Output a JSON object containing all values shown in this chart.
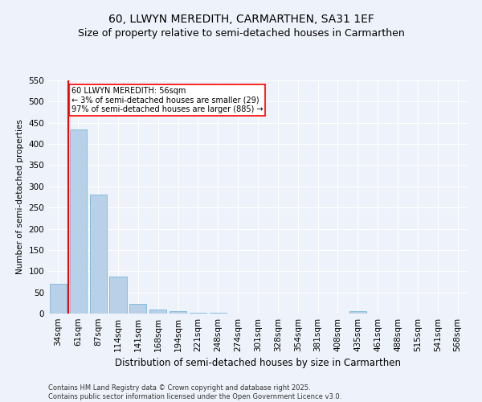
{
  "title": "60, LLWYN MEREDITH, CARMARTHEN, SA31 1EF",
  "subtitle": "Size of property relative to semi-detached houses in Carmarthen",
  "xlabel": "Distribution of semi-detached houses by size in Carmarthen",
  "ylabel": "Number of semi-detached properties",
  "categories": [
    "34sqm",
    "61sqm",
    "87sqm",
    "114sqm",
    "141sqm",
    "168sqm",
    "194sqm",
    "221sqm",
    "248sqm",
    "274sqm",
    "301sqm",
    "328sqm",
    "354sqm",
    "381sqm",
    "408sqm",
    "435sqm",
    "461sqm",
    "488sqm",
    "515sqm",
    "541sqm",
    "568sqm"
  ],
  "values": [
    70,
    435,
    280,
    88,
    23,
    10,
    5,
    2,
    1,
    0,
    0,
    0,
    0,
    0,
    0,
    5,
    0,
    0,
    0,
    0,
    0
  ],
  "bar_color": "#b8d0e8",
  "bar_edgecolor": "#6aaed6",
  "vline_color": "red",
  "vline_x_index": 1,
  "annotation_title": "60 LLWYN MEREDITH: 56sqm",
  "annotation_line1": "← 3% of semi-detached houses are smaller (29)",
  "annotation_line2": "97% of semi-detached houses are larger (885) →",
  "annotation_box_facecolor": "white",
  "annotation_box_edgecolor": "red",
  "ylim": [
    0,
    550
  ],
  "yticks": [
    0,
    50,
    100,
    150,
    200,
    250,
    300,
    350,
    400,
    450,
    500,
    550
  ],
  "background_color": "#eef2fa",
  "grid_color": "white",
  "footer1": "Contains HM Land Registry data © Crown copyright and database right 2025.",
  "footer2": "Contains public sector information licensed under the Open Government Licence v3.0.",
  "title_fontsize": 10,
  "subtitle_fontsize": 9,
  "xlabel_fontsize": 8.5,
  "ylabel_fontsize": 7.5,
  "tick_fontsize": 7.5,
  "annot_fontsize": 7,
  "footer_fontsize": 6
}
